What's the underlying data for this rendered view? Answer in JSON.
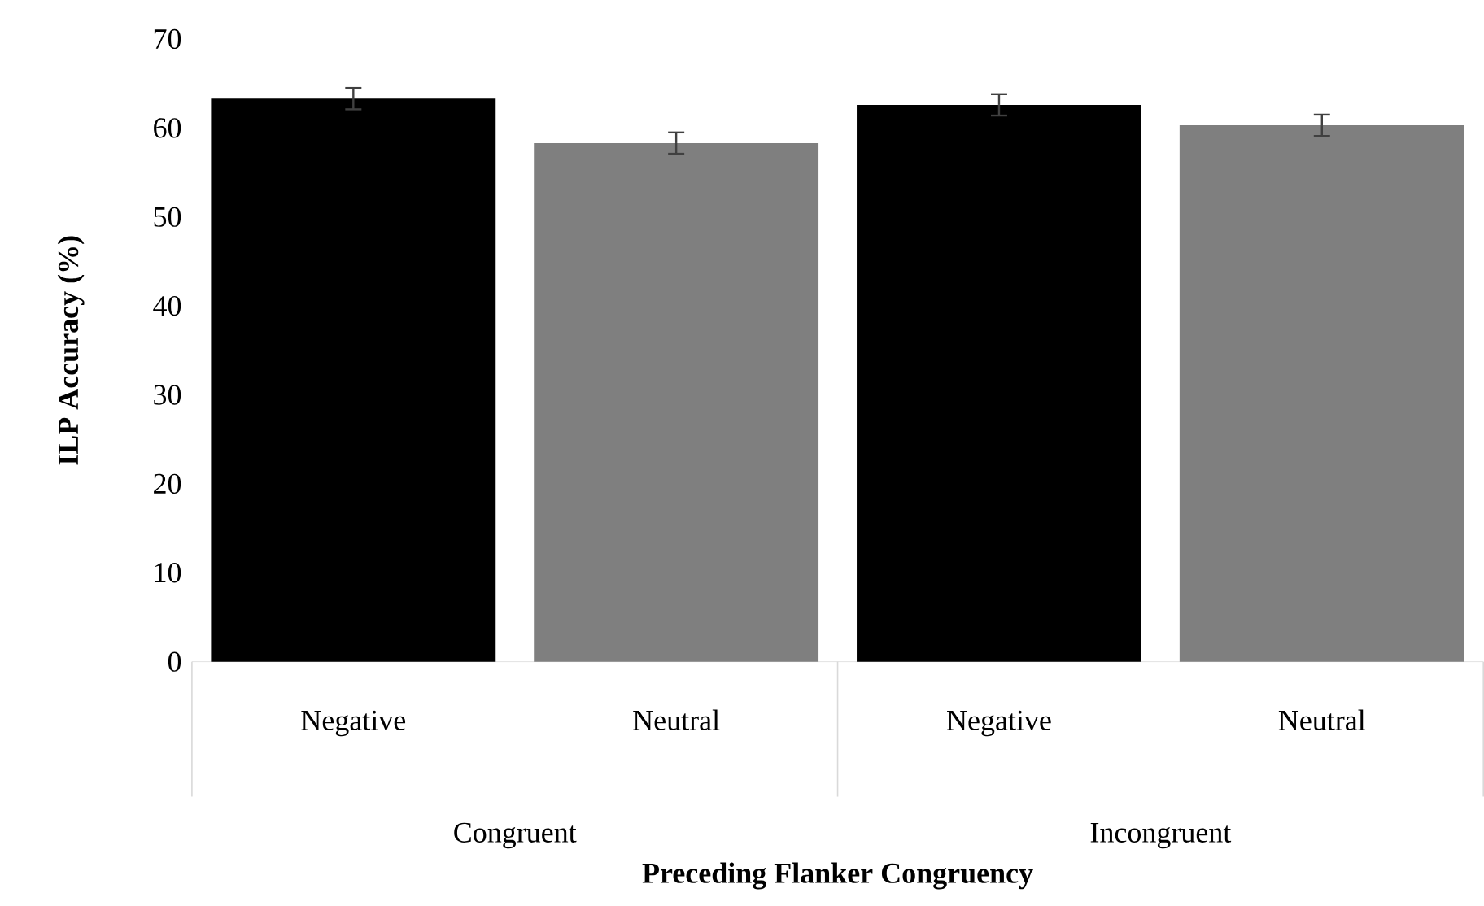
{
  "chart_data": {
    "type": "bar",
    "xlabel": "Preceding Flanker Congruency",
    "ylabel": "ILP Accuracy (%)",
    "categories": [
      "Negative",
      "Neutral",
      "Negative",
      "Neutral"
    ],
    "values": [
      63.3,
      58.3,
      62.6,
      60.3
    ],
    "errors": [
      1.2,
      1.2,
      1.2,
      1.2
    ],
    "colors": [
      "#000000",
      "#7f7f7f",
      "#000000",
      "#7f7f7f"
    ],
    "annotations": [
      "Congruent",
      "Incongruent"
    ],
    "ylim": [
      0,
      70
    ],
    "yticks": [
      0,
      10,
      20,
      30,
      40,
      50,
      60,
      70
    ],
    "grid": false
  }
}
